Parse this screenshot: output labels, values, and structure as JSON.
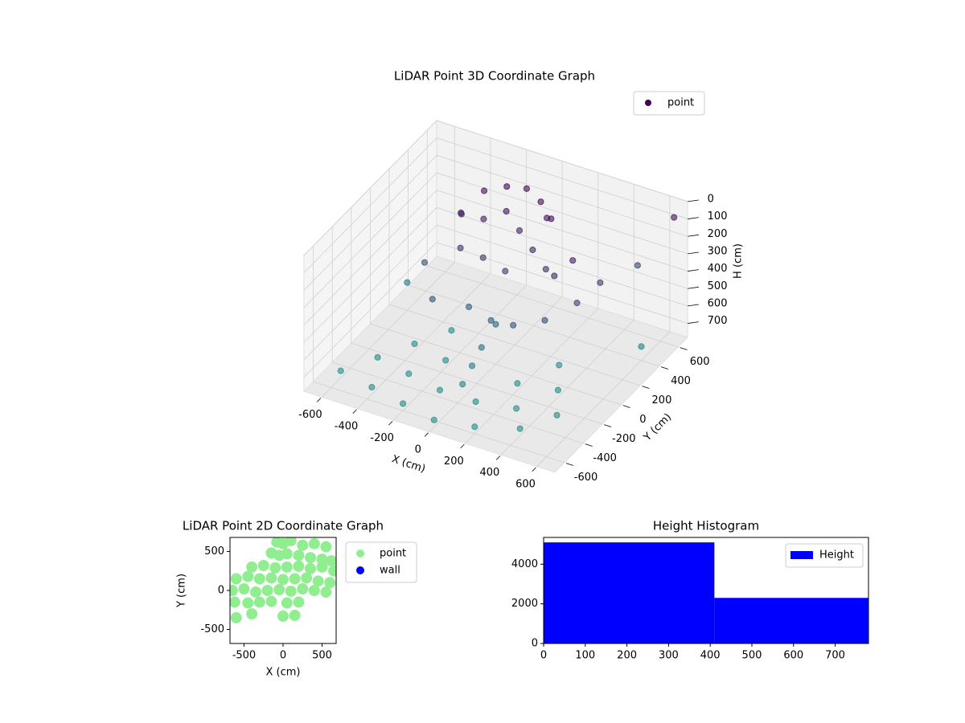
{
  "chart_data": [
    {
      "type": "scatter3d",
      "title": "LiDAR Point 3D Coordinate Graph",
      "xlabel": "X (cm)",
      "ylabel": "Y (cm)",
      "zlabel": "H (cm)",
      "xlim": [
        -700,
        700
      ],
      "ylim": [
        -700,
        700
      ],
      "zlim": [
        0,
        780
      ],
      "z_inverted": true,
      "xticks": [
        -600,
        -400,
        -200,
        0,
        200,
        400,
        600
      ],
      "yticks": [
        -600,
        -400,
        -200,
        0,
        200,
        400,
        600
      ],
      "zticks": [
        0,
        100,
        200,
        300,
        400,
        500,
        600,
        700
      ],
      "grid": true,
      "legend": "upper right",
      "colormap": [
        "#440154",
        "#21918c"
      ],
      "series": [
        {
          "name": "point",
          "color": "#440154",
          "x": [
            -250,
            -150,
            -50,
            50,
            150,
            -300,
            -200,
            -100,
            0,
            100,
            200,
            -250,
            -150,
            0,
            300,
            350,
            -350,
            100,
            -300,
            -150,
            0,
            150,
            300,
            400,
            450,
            -450,
            0,
            0,
            0,
            0,
            -600,
            -400,
            -200,
            0,
            200,
            400,
            -500,
            -300,
            -100,
            100,
            300,
            500,
            -400,
            -200,
            200,
            400,
            -300,
            300,
            600,
            -600,
            650,
            500
          ],
          "y": [
            350,
            400,
            420,
            380,
            300,
            200,
            250,
            300,
            250,
            200,
            150,
            100,
            150,
            100,
            50,
            150,
            300,
            350,
            -100,
            0,
            -50,
            -100,
            -50,
            100,
            250,
            100,
            0,
            -150,
            -250,
            -350,
            -500,
            -550,
            -600,
            -650,
            -600,
            -500,
            -300,
            -350,
            -400,
            -400,
            -350,
            -300,
            -100,
            -150,
            -150,
            -100,
            100,
            100,
            400,
            200,
            650,
            550
          ],
          "z": [
            60,
            30,
            20,
            40,
            60,
            120,
            150,
            100,
            150,
            200,
            250,
            250,
            300,
            300,
            200,
            150,
            200,
            100,
            450,
            500,
            500,
            450,
            400,
            350,
            300,
            400,
            550,
            600,
            650,
            700,
            740,
            740,
            740,
            740,
            740,
            740,
            740,
            740,
            740,
            740,
            740,
            740,
            740,
            740,
            740,
            740,
            740,
            740,
            700,
            620,
            80,
            350
          ]
        }
      ]
    },
    {
      "type": "scatter",
      "title": "LiDAR Point 2D Coordinate Graph",
      "xlabel": "X (cm)",
      "ylabel": "Y (cm)",
      "xlim": [
        -680,
        680
      ],
      "ylim": [
        -680,
        680
      ],
      "xticks": [
        -500,
        0,
        500
      ],
      "yticks": [
        -500,
        0,
        500
      ],
      "legend": "outside right",
      "series": [
        {
          "name": "point",
          "color": "#90ee90",
          "x": [
            -80,
            0,
            100,
            250,
            400,
            550,
            -150,
            -50,
            50,
            200,
            350,
            500,
            620,
            -400,
            -250,
            -100,
            50,
            200,
            350,
            500,
            650,
            -600,
            -450,
            -300,
            -150,
            0,
            150,
            300,
            450,
            600,
            -650,
            -500,
            -350,
            -200,
            -50,
            100,
            250,
            400,
            550,
            -620,
            -450,
            -300,
            -150,
            50,
            200,
            -600,
            -400,
            0,
            150
          ],
          "y": [
            620,
            600,
            640,
            580,
            600,
            560,
            480,
            450,
            470,
            450,
            420,
            400,
            380,
            300,
            320,
            290,
            300,
            310,
            280,
            300,
            250,
            150,
            180,
            150,
            160,
            140,
            150,
            160,
            120,
            100,
            0,
            20,
            -20,
            0,
            10,
            -10,
            20,
            0,
            -20,
            -150,
            -160,
            -150,
            -140,
            -160,
            -150,
            -350,
            -300,
            -330,
            -320
          ]
        },
        {
          "name": "wall",
          "color": "#0000ff",
          "x": [],
          "y": []
        }
      ]
    },
    {
      "type": "histogram",
      "title": "Height Histogram",
      "bins": [
        0,
        410,
        780
      ],
      "values": [
        5100,
        2300
      ],
      "name": "Height",
      "color": "#0000ff",
      "xlim": [
        0,
        780
      ],
      "ylim": [
        0,
        5350
      ],
      "xticks": [
        0,
        100,
        200,
        300,
        400,
        500,
        600,
        700
      ],
      "yticks": [
        0,
        2000,
        4000
      ],
      "legend": "upper right"
    }
  ]
}
